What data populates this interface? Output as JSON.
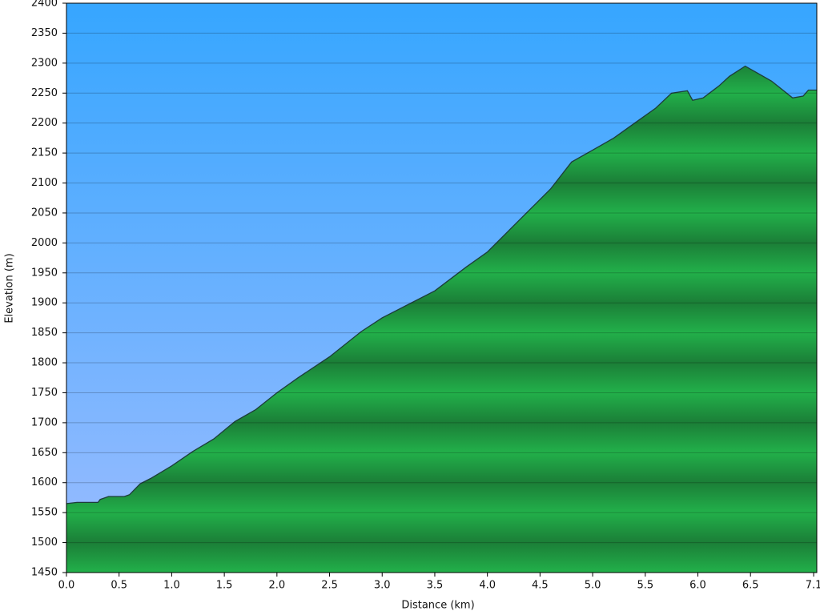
{
  "chart_data": {
    "type": "area",
    "x_label": "Distance   (km)",
    "y_label": "Elevation (m)",
    "x": [
      0,
      0.1,
      0.3,
      0.32,
      0.4,
      0.55,
      0.6,
      0.7,
      0.8,
      1.0,
      1.2,
      1.4,
      1.6,
      1.8,
      2.0,
      2.2,
      2.5,
      2.8,
      3.0,
      3.2,
      3.5,
      3.8,
      4.0,
      4.2,
      4.4,
      4.6,
      4.8,
      5.0,
      5.2,
      5.4,
      5.6,
      5.75,
      5.9,
      5.95,
      6.05,
      6.2,
      6.3,
      6.45,
      6.55,
      6.7,
      6.9,
      7.0,
      7.05,
      7.13
    ],
    "values": [
      1565,
      1567,
      1567,
      1572,
      1577,
      1577,
      1580,
      1598,
      1607,
      1628,
      1652,
      1673,
      1702,
      1722,
      1750,
      1775,
      1810,
      1852,
      1875,
      1893,
      1920,
      1960,
      1985,
      2020,
      2055,
      2090,
      2135,
      2155,
      2175,
      2200,
      2225,
      2250,
      2254,
      2238,
      2242,
      2262,
      2278,
      2295,
      2285,
      2270,
      2242,
      2245,
      2255,
      2255
    ],
    "color": "#22b04a",
    "xlim": [
      0,
      7.13
    ],
    "ylim": [
      1450,
      2400
    ],
    "xticks": [
      {
        "value": 0,
        "label": "0.0"
      },
      0.5,
      {
        "value": 1,
        "label": "1.0"
      },
      1.5,
      {
        "value": 2,
        "label": "2.0"
      },
      2.5,
      {
        "value": 3,
        "label": "3.0"
      },
      3.5,
      {
        "value": 4,
        "label": "4.0"
      },
      4.5,
      {
        "value": 5,
        "label": "5.0"
      },
      5.5,
      {
        "value": 6,
        "label": "6.0"
      },
      6.5,
      7.1
    ],
    "yticks": [
      1450,
      1500,
      1550,
      1600,
      1650,
      1700,
      1750,
      1800,
      1850,
      1900,
      1950,
      2000,
      2050,
      2100,
      2150,
      2200,
      2250,
      2300,
      2350,
      2400
    ],
    "grid": true
  }
}
